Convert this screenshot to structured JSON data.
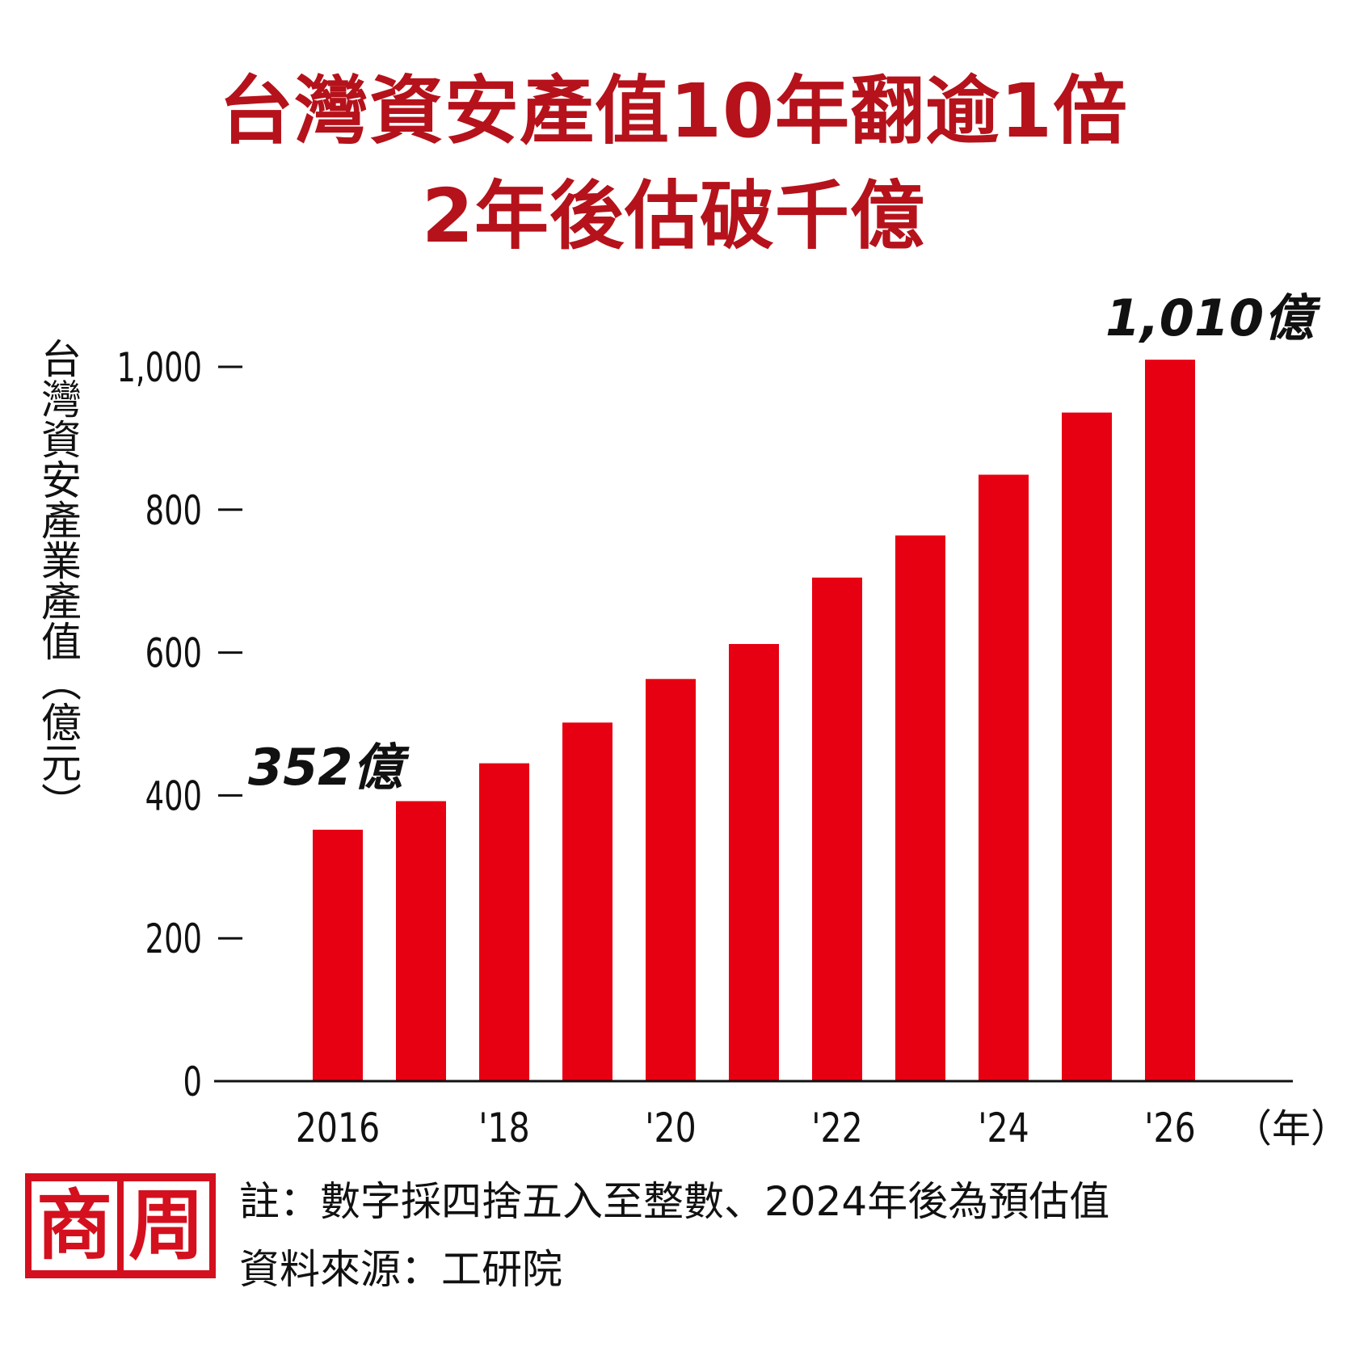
{
  "title_line1": "台灣資安產值10年翻逾1倍",
  "title_line2": "2年後估破千億",
  "colors": {
    "title": "#b5121b",
    "bar": "#e60012",
    "text": "#111111",
    "logo": "#d4101e"
  },
  "chart_data": {
    "type": "bar",
    "ylabel": "台灣資安產業產值（億元）",
    "xunit": "（年）",
    "ylim": [
      0,
      1000
    ],
    "yticks": [
      0,
      200,
      400,
      600,
      800,
      1000
    ],
    "ytick_labels": [
      "0",
      "200",
      "400",
      "600",
      "800",
      "1,000"
    ],
    "categories": [
      "2016",
      "2017",
      "2018",
      "2019",
      "2020",
      "2021",
      "2022",
      "2023",
      "2024",
      "2025",
      "2026"
    ],
    "xtick_labels": [
      "2016",
      "",
      "'18",
      "",
      "'20",
      "",
      "'22",
      "",
      "'24",
      "",
      "'26"
    ],
    "values": [
      352,
      392,
      445,
      502,
      563,
      612,
      705,
      764,
      849,
      936,
      1010
    ],
    "annotations": [
      {
        "index": 0,
        "text": "352億"
      },
      {
        "index": 10,
        "text": "1,010億"
      }
    ],
    "grid": false
  },
  "notes": {
    "line1": "註：數字採四捨五入至整數、2024年後為預估值",
    "line2": "資料來源：工研院"
  },
  "logo": {
    "char1": "商",
    "char2": "周"
  }
}
